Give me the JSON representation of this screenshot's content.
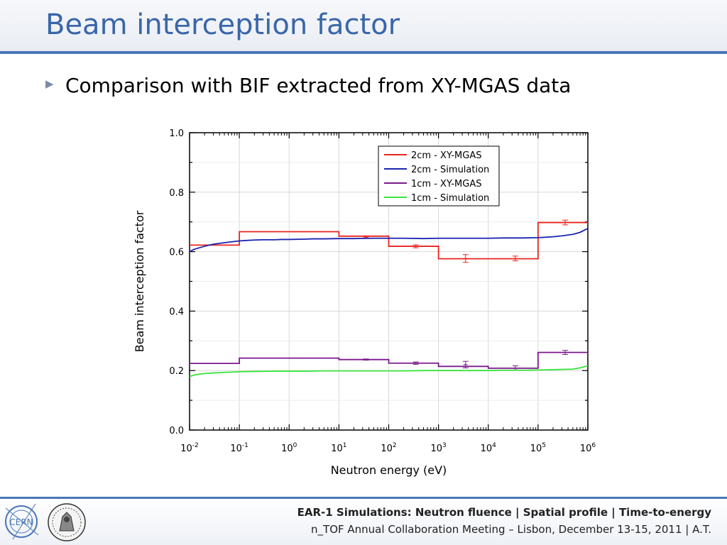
{
  "slide": {
    "title": "Beam interception factor",
    "bullet_icon": "triangle-right-icon",
    "bullet_text": "Comparison with BIF extracted from XY-MGAS data"
  },
  "footer": {
    "line1": "EAR-1 Simulations: Neutron fluence | Spatial profile | Time-to-energy",
    "line2": "n_TOF Annual Collaboration Meeting – Lisbon, December 13-15, 2011 | A.T.",
    "logo1_text": "CERN",
    "logo1_icon": "cern-logo-icon",
    "logo2_icon": "university-seal-icon"
  },
  "chart_data": {
    "type": "line",
    "xlabel": "Neutron energy (eV)",
    "ylabel": "Beam interception factor",
    "xscale": "log",
    "xlim": [
      0.01,
      1000000
    ],
    "ylim": [
      0.0,
      1.0
    ],
    "x_tick_labels": [
      {
        "base": "10",
        "exp": "-2"
      },
      {
        "base": "10",
        "exp": "-1"
      },
      {
        "base": "10",
        "exp": "0"
      },
      {
        "base": "10",
        "exp": "1"
      },
      {
        "base": "10",
        "exp": "2"
      },
      {
        "base": "10",
        "exp": "3"
      },
      {
        "base": "10",
        "exp": "4"
      },
      {
        "base": "10",
        "exp": "5"
      },
      {
        "base": "10",
        "exp": "6"
      }
    ],
    "y_tick_labels": [
      "0.0",
      "0.2",
      "0.4",
      "0.6",
      "0.8",
      "1.0"
    ],
    "grid": true,
    "legend_position": "top-right",
    "series": [
      {
        "name": "2cm - XY-MGAS",
        "color": "#e8241f",
        "style": "step",
        "edges": [
          0.01,
          0.1,
          10,
          100,
          1000,
          100000,
          1000000
        ],
        "values": [
          0.622,
          0.667,
          0.652,
          0.618,
          0.576,
          0.698
        ],
        "error_points": [
          {
            "x": 35,
            "y": 0.65,
            "err": 0.003
          },
          {
            "x": 350,
            "y": 0.618,
            "err": 0.005
          },
          {
            "x": 3500,
            "y": 0.577,
            "err": 0.013
          },
          {
            "x": 35000,
            "y": 0.577,
            "err": 0.008
          },
          {
            "x": 350000,
            "y": 0.698,
            "err": 0.008
          }
        ]
      },
      {
        "name": "2cm - Simulation",
        "color": "#1b23b0",
        "style": "line",
        "x": [
          0.01,
          0.012,
          0.015,
          0.02,
          0.025,
          0.03,
          0.04,
          0.05,
          0.07,
          0.1,
          0.15,
          0.2,
          0.3,
          0.5,
          0.7,
          1,
          2,
          3,
          5,
          10,
          20,
          50,
          100,
          200,
          500,
          1000,
          2000,
          5000,
          10000,
          20000,
          50000,
          100000,
          200000,
          300000,
          500000,
          700000,
          1000000
        ],
        "y": [
          0.6,
          0.607,
          0.612,
          0.618,
          0.622,
          0.625,
          0.628,
          0.63,
          0.633,
          0.636,
          0.638,
          0.639,
          0.64,
          0.64,
          0.641,
          0.641,
          0.642,
          0.643,
          0.643,
          0.644,
          0.644,
          0.645,
          0.645,
          0.645,
          0.644,
          0.645,
          0.645,
          0.645,
          0.645,
          0.646,
          0.646,
          0.647,
          0.65,
          0.653,
          0.658,
          0.665,
          0.678
        ]
      },
      {
        "name": "1cm - XY-MGAS",
        "color": "#7a1a8c",
        "style": "step",
        "edges": [
          0.01,
          0.1,
          10,
          100,
          1000,
          10000,
          100000,
          1000000
        ],
        "values": [
          0.224,
          0.242,
          0.237,
          0.225,
          0.214,
          0.208,
          0.261
        ],
        "error_points": [
          {
            "x": 35,
            "y": 0.237,
            "err": 0.002
          },
          {
            "x": 350,
            "y": 0.225,
            "err": 0.004
          },
          {
            "x": 3500,
            "y": 0.22,
            "err": 0.011
          },
          {
            "x": 35000,
            "y": 0.209,
            "err": 0.007
          },
          {
            "x": 350000,
            "y": 0.261,
            "err": 0.007
          }
        ]
      },
      {
        "name": "1cm - Simulation",
        "color": "#38e43a",
        "style": "line",
        "x": [
          0.01,
          0.013,
          0.02,
          0.03,
          0.05,
          0.1,
          0.2,
          0.5,
          1,
          2,
          5,
          10,
          20,
          50,
          100,
          200,
          500,
          1000,
          2000,
          5000,
          10000,
          20000,
          50000,
          100000,
          200000,
          500000,
          700000,
          1000000
        ],
        "y": [
          0.18,
          0.186,
          0.19,
          0.192,
          0.194,
          0.196,
          0.197,
          0.198,
          0.198,
          0.198,
          0.199,
          0.199,
          0.199,
          0.199,
          0.199,
          0.199,
          0.2,
          0.2,
          0.2,
          0.2,
          0.2,
          0.201,
          0.201,
          0.202,
          0.203,
          0.205,
          0.209,
          0.216
        ]
      }
    ]
  }
}
